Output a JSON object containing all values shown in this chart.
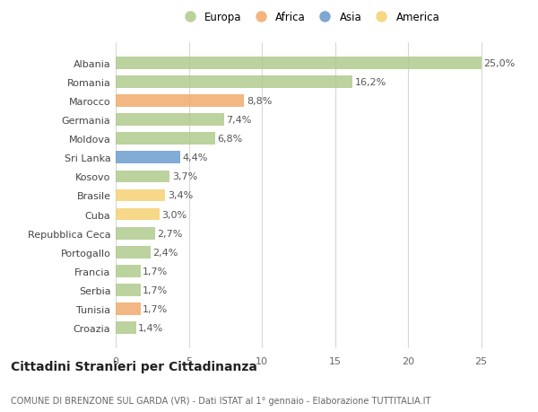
{
  "categories": [
    "Albania",
    "Romania",
    "Marocco",
    "Germania",
    "Moldova",
    "Sri Lanka",
    "Kosovo",
    "Brasile",
    "Cuba",
    "Repubblica Ceca",
    "Portogallo",
    "Francia",
    "Serbia",
    "Tunisia",
    "Croazia"
  ],
  "values": [
    25.0,
    16.2,
    8.8,
    7.4,
    6.8,
    4.4,
    3.7,
    3.4,
    3.0,
    2.7,
    2.4,
    1.7,
    1.7,
    1.7,
    1.4
  ],
  "labels": [
    "25,0%",
    "16,2%",
    "8,8%",
    "7,4%",
    "6,8%",
    "4,4%",
    "3,7%",
    "3,4%",
    "3,0%",
    "2,7%",
    "2,4%",
    "1,7%",
    "1,7%",
    "1,7%",
    "1,4%"
  ],
  "continents": [
    "Europa",
    "Europa",
    "Africa",
    "Europa",
    "Europa",
    "Asia",
    "Europa",
    "America",
    "America",
    "Europa",
    "Europa",
    "Europa",
    "Europa",
    "Africa",
    "Europa"
  ],
  "continent_colors": {
    "Europa": "#aec98a",
    "Africa": "#f0a868",
    "Asia": "#6699cc",
    "America": "#f5d06e"
  },
  "legend_order": [
    "Europa",
    "Africa",
    "Asia",
    "America"
  ],
  "xlim": [
    0,
    26.5
  ],
  "xticks": [
    0,
    5,
    10,
    15,
    20,
    25
  ],
  "title": "Cittadini Stranieri per Cittadinanza",
  "subtitle": "COMUNE DI BRENZONE SUL GARDA (VR) - Dati ISTAT al 1° gennaio - Elaborazione TUTTITALIA.IT",
  "background_color": "#ffffff",
  "grid_color": "#d8d8d8",
  "bar_height": 0.65,
  "label_fontsize": 8,
  "tick_fontsize": 8,
  "title_fontsize": 10,
  "subtitle_fontsize": 7
}
